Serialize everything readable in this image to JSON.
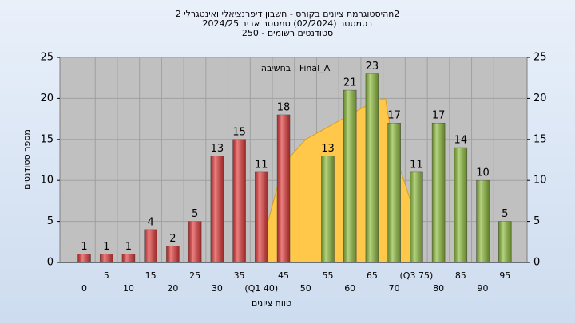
{
  "chart_data": {
    "type": "bar",
    "title": [
      "היסטוגרמת ציונים בקורס - חשבון דיפרנציאלי ואינטגרלי 2n2",
      "בסמסטר  (02/2024)  סמסטר אביב  2024/25",
      "250 - סטודנטים רשומים"
    ],
    "annotation": "בחשיבה : Final_A",
    "xlabel": "טווח ציונים",
    "ylabel": "מספר סטודנטים",
    "x": [
      0,
      5,
      10,
      15,
      20,
      25,
      30,
      35,
      40,
      45,
      50,
      55,
      60,
      65,
      70,
      75,
      80,
      85,
      90,
      95
    ],
    "values": [
      1,
      1,
      1,
      4,
      2,
      5,
      13,
      15,
      11,
      18,
      0,
      13,
      21,
      23,
      17,
      11,
      17,
      14,
      10,
      5
    ],
    "colors": [
      "#e03a3a",
      "#e03a3a",
      "#e03a3a",
      "#e03a3a",
      "#e03a3a",
      "#e03a3a",
      "#e03a3a",
      "#e03a3a",
      "#e03a3a",
      "#e03a3a",
      "#e03a3a",
      "#8dbb3c",
      "#8dbb3c",
      "#8dbb3c",
      "#8dbb3c",
      "#8dbb3c",
      "#8dbb3c",
      "#8dbb3c",
      "#8dbb3c",
      "#8dbb3c"
    ],
    "curve": {
      "color": "#ffc84a",
      "x": [
        39,
        45,
        50,
        55,
        60,
        65,
        68,
        70,
        74
      ],
      "values": [
        0,
        12,
        15,
        16.5,
        18,
        19.5,
        20,
        13.5,
        7
      ]
    },
    "xlim": [
      -5.5,
      100
    ],
    "xticks": [
      0,
      5,
      10,
      15,
      20,
      25,
      30,
      35,
      {
        "value": 40,
        "label": "(Q1 40)"
      },
      45,
      50,
      55,
      60,
      65,
      70,
      {
        "value": 75,
        "label": "(Q3 75)"
      },
      80,
      85,
      90,
      95
    ],
    "ylim": [
      0,
      25
    ],
    "yticks": [
      0,
      5,
      10,
      15,
      20,
      25
    ],
    "y2lim": [
      0,
      25
    ],
    "y2ticks": [
      0,
      5,
      10,
      15,
      20,
      25
    ],
    "grid": true
  }
}
